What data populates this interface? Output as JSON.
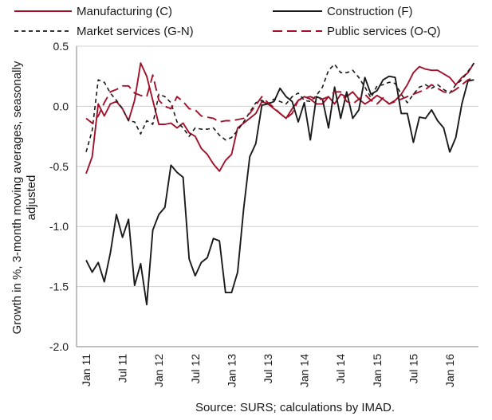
{
  "chart_data": {
    "type": "line",
    "title": "",
    "xlabel": "",
    "ylabel": "Growth in %, 3-month moving averages, seasonally adjusted",
    "ylabel_lines": [
      "Growth in %, 3-month moving averages, seasonally",
      "adjusted"
    ],
    "ylim": [
      -2.0,
      0.5
    ],
    "yticks": [
      0.5,
      0.0,
      -0.5,
      -1.0,
      -1.5,
      -2.0
    ],
    "ytick_labels": [
      "0.5",
      "0.0",
      "-0.5",
      "-1.0",
      "-1.5",
      "-2.0"
    ],
    "x_tick_labels": [
      "Jan 11",
      "Jul 11",
      "Jan 12",
      "Jul 12",
      "Jan 13",
      "Jul 13",
      "Jan 14",
      "Jul 14",
      "Jan 15",
      "Jul 15",
      "Jan 16"
    ],
    "x_tick_indices": [
      0,
      6,
      12,
      18,
      24,
      30,
      36,
      42,
      48,
      54,
      60
    ],
    "n_points": 65,
    "grid": {
      "horizontal": true,
      "vertical": false
    },
    "legend_placement": "top",
    "source": "Source: SURS; calculations by IMAD.",
    "series": [
      {
        "name": "Manufacturing (C)",
        "color": "#a1122a",
        "dash": "solid",
        "values": [
          -0.56,
          -0.42,
          0.02,
          -0.08,
          0.02,
          0.04,
          -0.02,
          -0.12,
          0.05,
          0.36,
          0.25,
          0.05,
          -0.15,
          -0.15,
          -0.14,
          -0.18,
          -0.14,
          -0.22,
          -0.25,
          -0.35,
          -0.4,
          -0.48,
          -0.54,
          -0.45,
          -0.4,
          -0.18,
          -0.14,
          -0.1,
          -0.06,
          0.04,
          0.02,
          -0.02,
          -0.06,
          -0.1,
          -0.02,
          0.05,
          0.08,
          0.06,
          0.02,
          0.02,
          0.08,
          0.02,
          0.1,
          0.08,
          0.12,
          0.06,
          0.02,
          0.05,
          0.09,
          0.06,
          0.02,
          0.05,
          0.1,
          0.18,
          0.28,
          0.33,
          0.31,
          0.3,
          0.3,
          0.27,
          0.24,
          0.18,
          0.24,
          0.28,
          0.36
        ]
      },
      {
        "name": "Construction (F)",
        "color": "#1a1a1a",
        "dash": "solid",
        "values": [
          -1.28,
          -1.38,
          -1.3,
          -1.46,
          -1.22,
          -0.9,
          -1.09,
          -0.94,
          -1.49,
          -1.31,
          -1.65,
          -1.03,
          -0.9,
          -0.84,
          -0.49,
          -0.55,
          -0.59,
          -1.27,
          -1.41,
          -1.3,
          -1.26,
          -1.1,
          -1.12,
          -1.55,
          -1.55,
          -1.38,
          -0.85,
          -0.42,
          -0.31,
          0.01,
          0.02,
          0.04,
          0.15,
          0.08,
          0.04,
          -0.13,
          0.03,
          -0.28,
          0.08,
          0.06,
          -0.18,
          0.16,
          -0.1,
          0.12,
          -0.1,
          -0.03,
          0.24,
          0.1,
          0.13,
          0.22,
          0.25,
          0.24,
          -0.06,
          -0.06,
          -0.3,
          -0.09,
          -0.1,
          -0.03,
          -0.12,
          -0.18,
          -0.38,
          -0.26,
          0.02,
          0.21,
          0.22
        ]
      },
      {
        "name": "Market services (G-N)",
        "color": "#1a1a1a",
        "dash": "short",
        "values": [
          -0.38,
          -0.2,
          0.22,
          0.2,
          0.11,
          0.05,
          -0.02,
          -0.12,
          -0.13,
          -0.23,
          -0.12,
          -0.15,
          0.1,
          0.08,
          0.03,
          -0.13,
          -0.18,
          -0.25,
          -0.18,
          -0.19,
          -0.19,
          -0.18,
          -0.24,
          -0.28,
          -0.26,
          -0.2,
          -0.13,
          -0.05,
          0.03,
          0.05,
          0.02,
          0.06,
          0.04,
          0.02,
          0.08,
          0.11,
          0.05,
          0.04,
          0.09,
          0.16,
          0.3,
          0.35,
          0.28,
          0.28,
          0.3,
          0.24,
          0.16,
          0.07,
          0.17,
          0.18,
          0.2,
          0.19,
          0.1,
          0.03,
          0.1,
          0.16,
          0.18,
          0.15,
          0.18,
          0.14,
          0.11,
          0.18,
          0.22,
          0.29,
          0.36
        ]
      },
      {
        "name": "Public services (O-Q)",
        "color": "#a1122a",
        "dash": "long",
        "values": [
          -0.1,
          -0.14,
          -0.08,
          0.03,
          0.12,
          0.14,
          0.17,
          0.17,
          0.11,
          0.09,
          0.08,
          0.26,
          0.05,
          0.0,
          -0.02,
          0.08,
          0.04,
          -0.02,
          -0.03,
          -0.08,
          -0.09,
          -0.1,
          -0.13,
          -0.12,
          -0.12,
          -0.11,
          -0.1,
          -0.06,
          0.01,
          0.08,
          0.03,
          -0.01,
          -0.06,
          -0.1,
          -0.06,
          0.05,
          0.07,
          0.08,
          0.06,
          0.06,
          0.08,
          0.12,
          0.12,
          0.04,
          0.02,
          0.06,
          0.1,
          0.05,
          0.02,
          0.07,
          0.02,
          0.04,
          0.06,
          0.08,
          0.1,
          0.12,
          0.14,
          0.18,
          0.15,
          0.12,
          0.11,
          0.14,
          0.18,
          0.22,
          0.24
        ]
      }
    ]
  }
}
